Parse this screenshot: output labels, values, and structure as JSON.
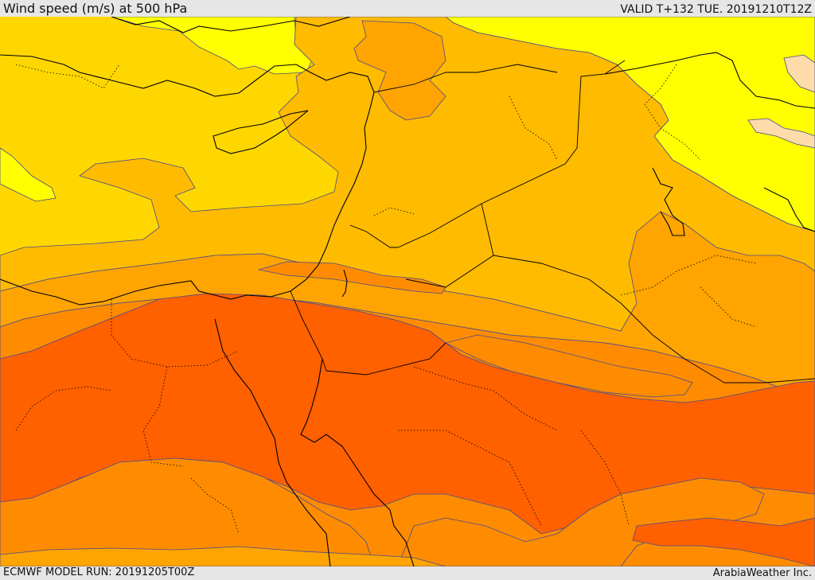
{
  "header": {
    "title": "Wind speed (m/s) at 500 hPa",
    "valid": "VALID T+132 TUE. 20191210T12Z"
  },
  "footer": {
    "model_run": "ECMWF MODEL RUN: 20191205T00Z",
    "brand": "ArabiaWeather Inc."
  },
  "map": {
    "field": "wind speed 500 hPa",
    "bands": [
      {
        "name": "band-light-peach",
        "color": "#fddcaa"
      },
      {
        "name": "band-yellow",
        "color": "#ffff00"
      },
      {
        "name": "band-gold",
        "color": "#ffd700"
      },
      {
        "name": "band-amber",
        "color": "#ffbb00"
      },
      {
        "name": "band-orange-light",
        "color": "#ffa400"
      },
      {
        "name": "band-orange",
        "color": "#ff8c00"
      },
      {
        "name": "band-orange-red",
        "color": "#ff6000"
      }
    ],
    "coastline_color": "#000000",
    "contour_color": "#4a4a8a"
  }
}
